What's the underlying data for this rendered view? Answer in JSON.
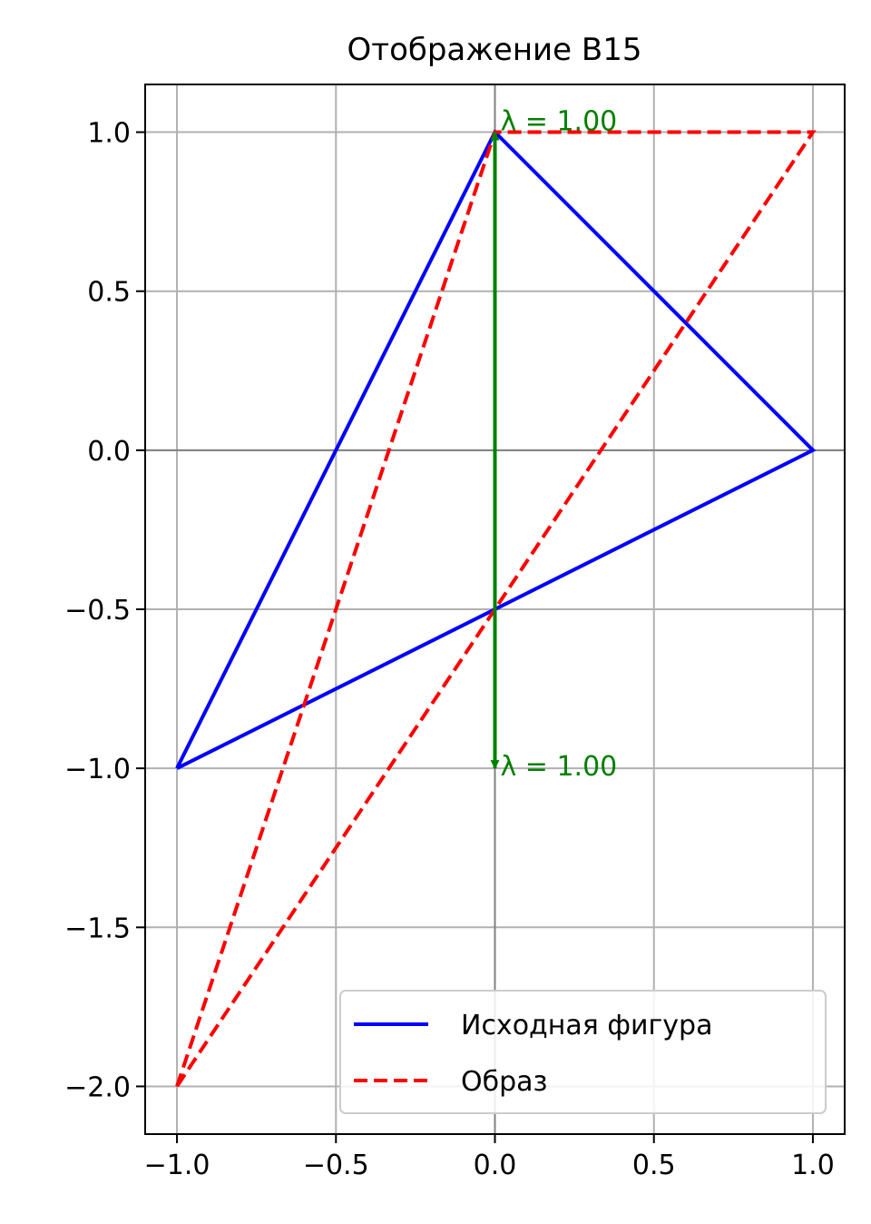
{
  "chart_data": {
    "type": "line",
    "title": "Отображение B15",
    "xlabel": "",
    "ylabel": "",
    "xlim": [
      -1.1,
      1.1
    ],
    "ylim": [
      -2.15,
      1.15
    ],
    "xticks": [
      -1.0,
      -0.5,
      0.0,
      0.5,
      1.0
    ],
    "xtick_labels": [
      "−1.0",
      "−0.5",
      "0.0",
      "0.5",
      "1.0"
    ],
    "yticks": [
      1.0,
      0.5,
      0.0,
      -0.5,
      -1.0,
      -1.5,
      -2.0
    ],
    "ytick_labels": [
      "1.0",
      "0.5",
      "0.0",
      "−0.5",
      "−1.0",
      "−1.5",
      "−2.0"
    ],
    "grid": true,
    "legend_position": "lower-right",
    "series": [
      {
        "name": "Исходная фигура",
        "color": "#0000ff",
        "style": "solid",
        "x": [
          -1.0,
          0.0,
          1.0,
          -1.0
        ],
        "y": [
          -1.0,
          1.0,
          0.0,
          -1.0
        ]
      },
      {
        "name": "Образ",
        "color": "#ff0000",
        "style": "dashed",
        "x": [
          -1.0,
          0.0,
          1.0,
          -1.0
        ],
        "y": [
          -2.0,
          1.0,
          1.0,
          -2.0
        ]
      }
    ],
    "eigenvectors": [
      {
        "from": [
          0.0,
          -0.5
        ],
        "to": [
          0.0,
          1.0
        ],
        "label": "λ = 1.00",
        "color": "#008000"
      },
      {
        "from": [
          0.0,
          -0.5
        ],
        "to": [
          0.0,
          -1.0
        ],
        "label": "λ = 1.00",
        "color": "#008000"
      }
    ]
  }
}
